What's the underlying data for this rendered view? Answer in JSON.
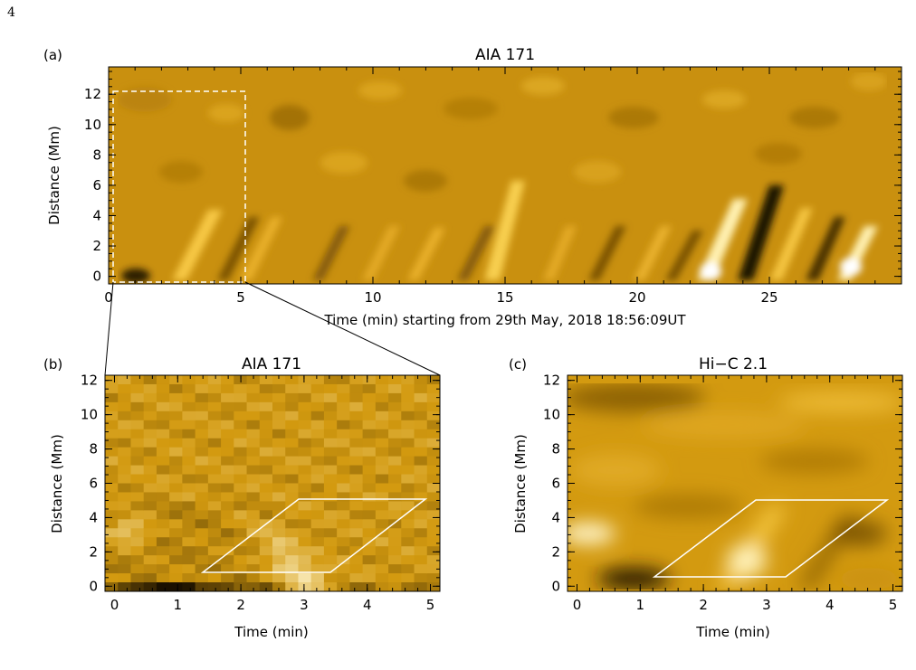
{
  "page_number": "4",
  "colors": {
    "low": "#1a1000",
    "mid": "#d39a10",
    "high": "#fff6cf"
  },
  "panel_a": {
    "tag": "(a)",
    "title": "AIA 171",
    "xlabel": "Time (min) starting from 29th May, 2018 18:56:09UT",
    "ylabel": "Distance (Mm)",
    "x_ticks": [
      "0",
      "5",
      "10",
      "15",
      "20",
      "25"
    ],
    "y_ticks": [
      "0",
      "2",
      "4",
      "6",
      "8",
      "10",
      "12"
    ],
    "xlim": [
      0,
      30
    ],
    "ylim": [
      -0.5,
      13.8
    ]
  },
  "panel_b": {
    "tag": "(b)",
    "title": "AIA 171",
    "xlabel": "Time (min)",
    "ylabel": "Distance (Mm)",
    "x_ticks": [
      "0",
      "1",
      "2",
      "3",
      "4",
      "5"
    ],
    "y_ticks": [
      "0",
      "2",
      "4",
      "6",
      "8",
      "10",
      "12"
    ],
    "xlim": [
      -0.15,
      5.15
    ],
    "ylim": [
      -0.3,
      12.3
    ]
  },
  "panel_c": {
    "tag": "(c)",
    "title": "Hi−C 2.1",
    "xlabel": "Time (min)",
    "ylabel": "Distance (Mm)",
    "x_ticks": [
      "0",
      "1",
      "2",
      "3",
      "4",
      "5"
    ],
    "y_ticks": [
      "0",
      "2",
      "4",
      "6",
      "8",
      "10",
      "12"
    ],
    "xlim": [
      -0.15,
      5.15
    ],
    "ylim": [
      -0.3,
      12.3
    ]
  }
}
